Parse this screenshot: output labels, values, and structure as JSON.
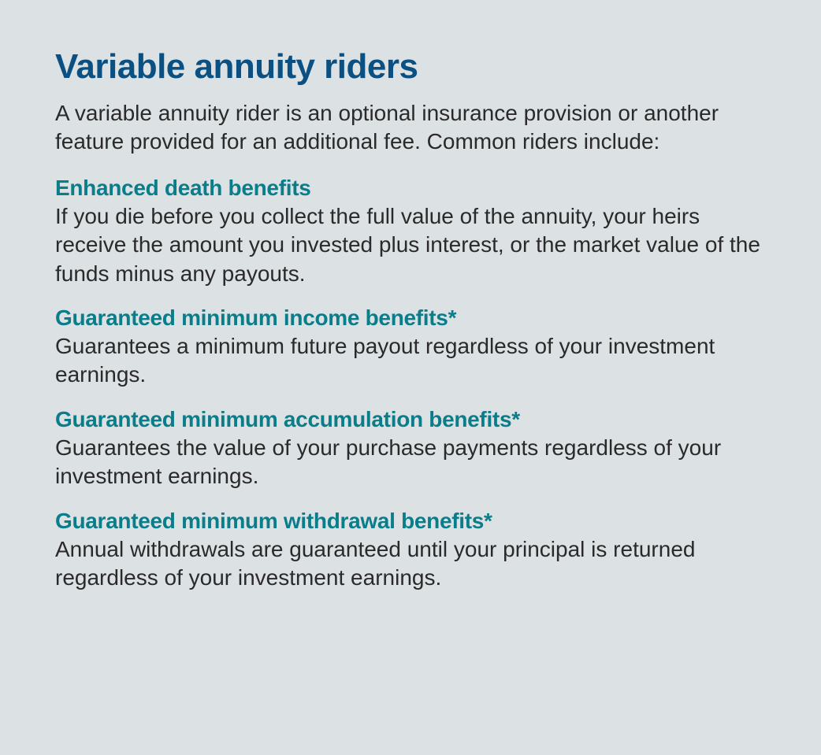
{
  "colors": {
    "background": "#dce1e3",
    "title": "#0a5082",
    "subheading": "#0a7d8a",
    "body_text": "#2a2a2a"
  },
  "typography": {
    "title_fontsize": 44,
    "title_fontweight": 700,
    "subheading_fontsize": 28,
    "subheading_fontweight": 700,
    "body_fontsize": 28,
    "line_height": 1.3
  },
  "title": "Variable annuity riders",
  "intro": "A variable annuity rider is an optional insurance provision or another feature provided for an additional fee. Common riders include:",
  "sections": [
    {
      "heading": "Enhanced death benefits",
      "body": "If you die before you collect the full value of the annuity, your heirs receive the amount you invested plus interest, or the market value of the funds minus any payouts."
    },
    {
      "heading": "Guaranteed minimum income benefits*",
      "body": "Guarantees a minimum future payout regardless of your investment earnings."
    },
    {
      "heading": "Guaranteed minimum accumulation benefits*",
      "body": "Guarantees the value of your purchase payments regardless of your investment earnings."
    },
    {
      "heading": "Guaranteed minimum withdrawal benefits*",
      "body": "Annual withdrawals are guaranteed until your principal is returned regardless of your investment earnings."
    }
  ]
}
